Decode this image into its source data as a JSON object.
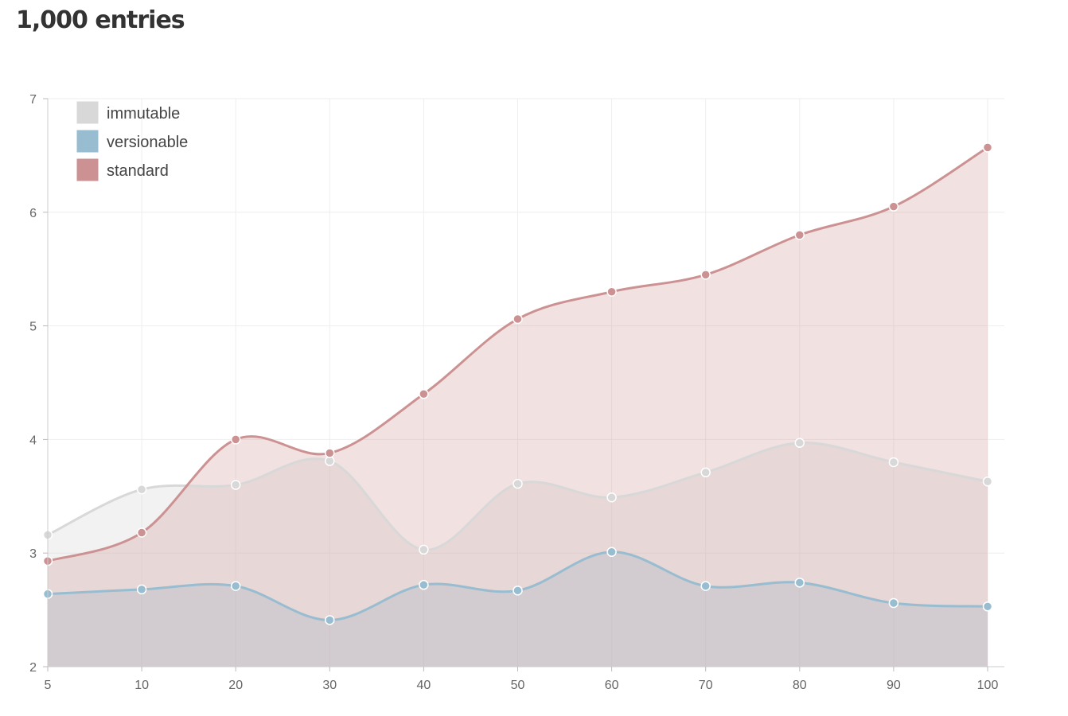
{
  "header": {
    "title": "1,000 entries"
  },
  "chart_data": {
    "type": "area",
    "title": "1,000 entries",
    "xlabel": "",
    "ylabel": "",
    "x": [
      5,
      10,
      20,
      30,
      40,
      50,
      60,
      70,
      80,
      90,
      100
    ],
    "ylim": [
      2,
      7
    ],
    "yticks": [
      2,
      3,
      4,
      5,
      6,
      7
    ],
    "grid": true,
    "legend_position": "top-left",
    "series": [
      {
        "name": "immutable",
        "color": "#d8d8d8",
        "values": [
          3.16,
          3.56,
          3.6,
          3.81,
          3.03,
          3.61,
          3.49,
          3.71,
          3.97,
          3.8,
          3.63
        ]
      },
      {
        "name": "versionable",
        "color": "#98bdd0",
        "values": [
          2.64,
          2.68,
          2.71,
          2.41,
          2.72,
          2.67,
          3.01,
          2.71,
          2.74,
          2.56,
          2.53
        ]
      },
      {
        "name": "standard",
        "color": "#cc9293",
        "values": [
          2.93,
          3.18,
          4.0,
          3.88,
          4.4,
          5.06,
          5.3,
          5.45,
          5.8,
          6.05,
          6.57
        ]
      }
    ]
  }
}
